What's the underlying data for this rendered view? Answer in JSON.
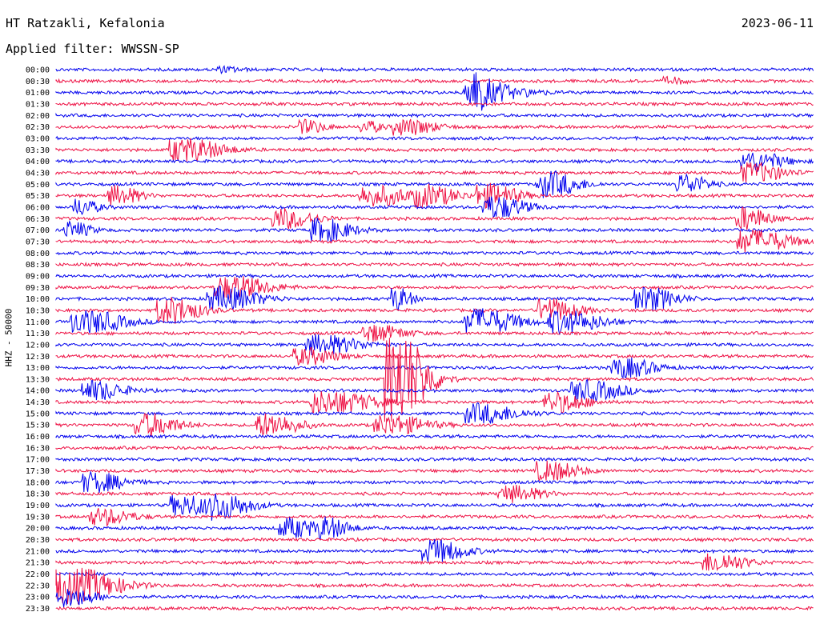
{
  "header": {
    "station": "HT Ratzakli, Kefalonia",
    "filter_prefix": "Applied filter:",
    "filter": "WWSSN-SP",
    "date": "2023-06-11"
  },
  "chart_data": {
    "type": "line",
    "title": "HT Ratzakli, Kefalonia",
    "ylabel": "HHZ - 50000",
    "rows": [
      "00:00",
      "00:30",
      "01:00",
      "01:30",
      "02:00",
      "02:30",
      "03:00",
      "03:30",
      "04:00",
      "04:30",
      "05:00",
      "05:30",
      "06:00",
      "06:30",
      "07:00",
      "07:30",
      "08:00",
      "08:30",
      "09:00",
      "09:30",
      "10:00",
      "10:30",
      "11:00",
      "11:30",
      "12:00",
      "12:30",
      "13:00",
      "13:30",
      "14:00",
      "14:30",
      "15:00",
      "15:30",
      "16:00",
      "16:30",
      "17:00",
      "17:30",
      "18:00",
      "18:30",
      "19:00",
      "19:30",
      "20:00",
      "20:30",
      "21:00",
      "21:30",
      "22:00",
      "22:30",
      "23:00",
      "23:30"
    ],
    "trace_colors": [
      "#0000ee",
      "#ee1144"
    ],
    "legend": "none",
    "grid": false
  }
}
